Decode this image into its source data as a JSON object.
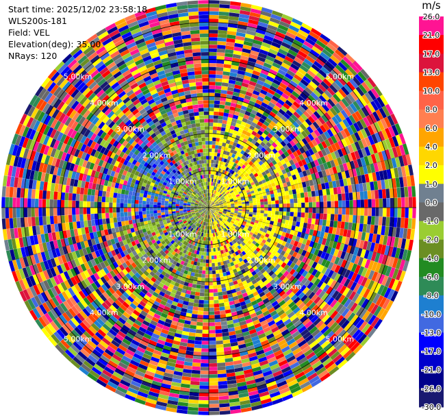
{
  "header": {
    "start_time": "Start time: 2025/12/02 23:58:18",
    "instrument": "WLS200s-181",
    "field": "Field: VEL",
    "elevation": "Elevation(deg): 35.00",
    "nrays": "NRays: 120"
  },
  "chart_data": {
    "type": "heatmap",
    "subtype": "polar radar PPI",
    "field": "VEL",
    "nrays": 120,
    "max_range_km": 5.6,
    "range_ring_labels": [
      "1.00km",
      "2.00km",
      "3.00km",
      "4.00km",
      "5.00km"
    ],
    "range_rings_km": [
      1,
      2,
      3,
      4,
      5
    ],
    "colorbar": {
      "unit": "m/s",
      "bounds": [
        "26.0",
        "21.0",
        "17.0",
        "13.0",
        "10.0",
        "8.0",
        "6.0",
        "4.0",
        "2.0",
        "1.0",
        "0.0",
        "-1.0",
        "-2.0",
        "-4.0",
        "-6.0",
        "-8.0",
        "-10.0",
        "-13.0",
        "-17.0",
        "-21.0",
        "-26.0",
        "-30.0"
      ],
      "colors": [
        "#ff1493",
        "#ff0000",
        "#dc143c",
        "#ff4500",
        "#ff6347",
        "#ff7f50",
        "#ffa500",
        "#ffd700",
        "#ffff00",
        "#708090",
        "#696969",
        "#9acd32",
        "#6b8e23",
        "#228b22",
        "#2e8b57",
        "#1e7fd0",
        "#4169e1",
        "#0000ff",
        "#0000cd",
        "#00008b",
        "#191970"
      ]
    }
  }
}
